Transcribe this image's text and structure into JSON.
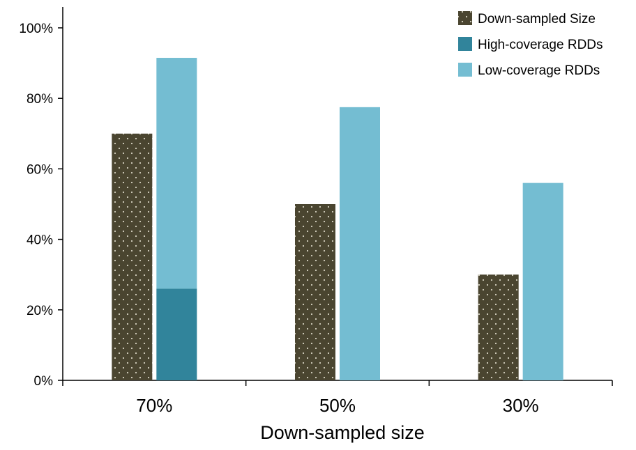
{
  "chart_data": {
    "type": "bar",
    "title": "",
    "xlabel": "Down-sampled size",
    "ylabel": "",
    "ylim": [
      0,
      1.05
    ],
    "y_ticks": [
      "0%",
      "20%",
      "40%",
      "60%",
      "80%",
      "100%"
    ],
    "y_tick_values": [
      0,
      0.2,
      0.4,
      0.6,
      0.8,
      1.0
    ],
    "categories": [
      "70%",
      "50%",
      "30%"
    ],
    "series": [
      {
        "name": "Down-sampled Size",
        "values": [
          0.7,
          0.5,
          0.3
        ],
        "color": "#4a4530",
        "pattern": "dots"
      },
      {
        "name": "High-coverage RDDs",
        "values": [
          0.26,
          0.0,
          0.0
        ],
        "color": "#31849b",
        "stacked_with": "Low-coverage RDDs"
      },
      {
        "name": "Low-coverage RDDs",
        "values": [
          0.655,
          0.775,
          0.56
        ],
        "color": "#74bdd2"
      }
    ],
    "legend_position": "top-right",
    "grid": false
  }
}
